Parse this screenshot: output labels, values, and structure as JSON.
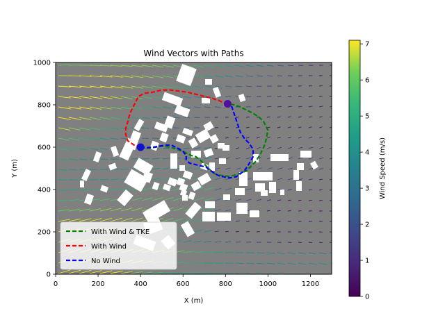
{
  "chart_data": {
    "type": "quiver",
    "title": "Wind Vectors with Paths",
    "xlabel": "X (m)",
    "ylabel": "Y (m)",
    "xlim": [
      0,
      1300
    ],
    "ylim": [
      0,
      1000
    ],
    "xticks": [
      0,
      200,
      400,
      600,
      800,
      1000,
      1200
    ],
    "yticks": [
      0,
      200,
      400,
      600,
      800,
      1000
    ],
    "background_color": "#808080",
    "grid": false,
    "legend_position": "lower-left",
    "colorbar": {
      "label": "Wind Speed (m/s)",
      "min": 0,
      "max": 7.1,
      "ticks": [
        0,
        1,
        2,
        3,
        4,
        5,
        6,
        7
      ],
      "colormap": "viridis"
    },
    "start_point": [
      400,
      600
    ],
    "end_point": [
      810,
      805
    ],
    "series": [
      {
        "name": "With Wind & TKE",
        "color": "#008000",
        "style": "dashed",
        "points": [
          [
            400,
            600
          ],
          [
            440,
            595
          ],
          [
            470,
            600
          ],
          [
            500,
            605
          ],
          [
            540,
            600
          ],
          [
            570,
            590
          ],
          [
            600,
            580
          ],
          [
            620,
            570
          ],
          [
            640,
            560
          ],
          [
            660,
            555
          ],
          [
            680,
            540
          ],
          [
            700,
            520
          ],
          [
            720,
            500
          ],
          [
            740,
            480
          ],
          [
            760,
            470
          ],
          [
            790,
            465
          ],
          [
            820,
            462
          ],
          [
            850,
            470
          ],
          [
            880,
            480
          ],
          [
            900,
            490
          ],
          [
            920,
            510
          ],
          [
            940,
            530
          ],
          [
            960,
            560
          ],
          [
            980,
            600
          ],
          [
            990,
            630
          ],
          [
            1000,
            680
          ],
          [
            980,
            720
          ],
          [
            960,
            740
          ],
          [
            930,
            760
          ],
          [
            900,
            775
          ],
          [
            870,
            790
          ],
          [
            840,
            800
          ],
          [
            810,
            805
          ]
        ]
      },
      {
        "name": "With Wind",
        "color": "#ff0000",
        "style": "dashed",
        "points": [
          [
            400,
            600
          ],
          [
            370,
            610
          ],
          [
            340,
            630
          ],
          [
            330,
            660
          ],
          [
            330,
            690
          ],
          [
            340,
            720
          ],
          [
            350,
            760
          ],
          [
            370,
            800
          ],
          [
            390,
            840
          ],
          [
            420,
            855
          ],
          [
            460,
            860
          ],
          [
            500,
            870
          ],
          [
            540,
            870
          ],
          [
            580,
            865
          ],
          [
            620,
            860
          ],
          [
            660,
            850
          ],
          [
            700,
            840
          ],
          [
            740,
            830
          ],
          [
            770,
            820
          ],
          [
            790,
            810
          ],
          [
            810,
            805
          ]
        ]
      },
      {
        "name": "No Wind",
        "color": "#0000ff",
        "style": "dashed",
        "points": [
          [
            400,
            600
          ],
          [
            430,
            598
          ],
          [
            460,
            600
          ],
          [
            490,
            605
          ],
          [
            520,
            610
          ],
          [
            545,
            610
          ],
          [
            565,
            600
          ],
          [
            585,
            590
          ],
          [
            600,
            580
          ],
          [
            615,
            560
          ],
          [
            615,
            540
          ],
          [
            630,
            525
          ],
          [
            650,
            520
          ],
          [
            670,
            515
          ],
          [
            690,
            510
          ],
          [
            710,
            505
          ],
          [
            730,
            490
          ],
          [
            750,
            475
          ],
          [
            770,
            465
          ],
          [
            800,
            458
          ],
          [
            820,
            455
          ],
          [
            850,
            460
          ],
          [
            870,
            475
          ],
          [
            890,
            490
          ],
          [
            910,
            520
          ],
          [
            930,
            555
          ],
          [
            930,
            590
          ],
          [
            910,
            620
          ],
          [
            890,
            640
          ],
          [
            870,
            670
          ],
          [
            860,
            700
          ],
          [
            850,
            730
          ],
          [
            840,
            760
          ],
          [
            830,
            790
          ],
          [
            810,
            805
          ]
        ]
      }
    ]
  }
}
